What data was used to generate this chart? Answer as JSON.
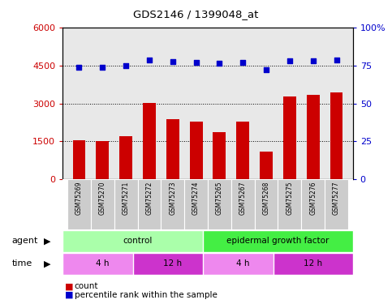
{
  "title": "GDS2146 / 1399048_at",
  "samples": [
    "GSM75269",
    "GSM75270",
    "GSM75271",
    "GSM75272",
    "GSM75273",
    "GSM75274",
    "GSM75265",
    "GSM75267",
    "GSM75268",
    "GSM75275",
    "GSM75276",
    "GSM75277"
  ],
  "counts": [
    1530,
    1520,
    1720,
    3020,
    2380,
    2280,
    1850,
    2280,
    1100,
    3260,
    3340,
    3420
  ],
  "percentile_ranks": [
    4440,
    4410,
    4500,
    4720,
    4660,
    4620,
    4580,
    4610,
    4320,
    4680,
    4690,
    4710
  ],
  "ylim_left": [
    0,
    6000
  ],
  "ylim_right": [
    0,
    100
  ],
  "yticks_left": [
    0,
    1500,
    3000,
    4500,
    6000
  ],
  "yticks_right": [
    0,
    25,
    50,
    75,
    100
  ],
  "bar_color": "#cc0000",
  "scatter_color": "#0000cc",
  "dotted_line_values": [
    1500,
    3000,
    4500
  ],
  "agent_groups": [
    {
      "label": "control",
      "start": 0,
      "end": 6,
      "color": "#aaffaa"
    },
    {
      "label": "epidermal growth factor",
      "start": 6,
      "end": 12,
      "color": "#44ee44"
    }
  ],
  "time_groups": [
    {
      "label": "4 h",
      "start": 0,
      "end": 3,
      "color": "#ee88ee"
    },
    {
      "label": "12 h",
      "start": 3,
      "end": 6,
      "color": "#cc33cc"
    },
    {
      "label": "4 h",
      "start": 6,
      "end": 9,
      "color": "#ee88ee"
    },
    {
      "label": "12 h",
      "start": 9,
      "end": 12,
      "color": "#cc33cc"
    }
  ],
  "tick_label_color_left": "#cc0000",
  "tick_label_color_right": "#0000cc",
  "plot_bg_color": "#e8e8e8",
  "sample_bg_color": "#cccccc",
  "white": "#ffffff"
}
